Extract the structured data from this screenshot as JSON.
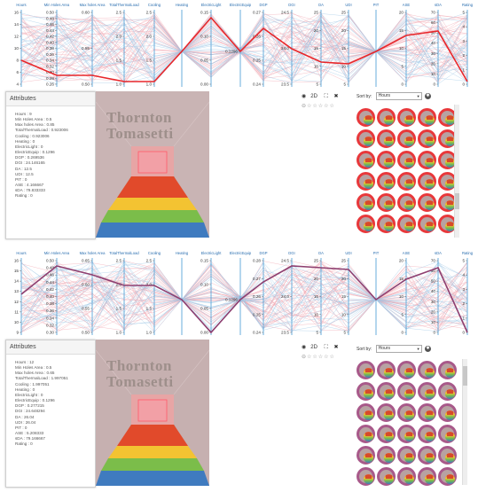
{
  "axes_labels": [
    "Hours",
    "Min Holes Area",
    "Max holes Area",
    "TotalThermalLoad",
    "Cooling",
    "Heating",
    "ElectricLight",
    "ElectricEquip",
    "DGP",
    "DGI",
    "DA",
    "UDI",
    "PIT",
    "ASE",
    "sDA",
    "Rating"
  ],
  "panels": [
    {
      "id": "top",
      "axes": [
        {
          "ticks": [
            "16",
            "14",
            "12",
            "10",
            "8",
            "6",
            "4"
          ]
        },
        {
          "ticks": [
            "0.50",
            "0.48",
            "0.46",
            "0.44",
            "0.42",
            "0.40",
            "0.38",
            "0.36",
            "0.34",
            "0.32",
            "0.30",
            "0.28",
            "0.26"
          ]
        },
        {
          "ticks": [
            "0.60",
            "0.55",
            "0.50"
          ]
        },
        {
          "ticks": [
            "2.5",
            "2.0",
            "1.5",
            "1.0"
          ]
        },
        {
          "ticks": [
            "2.5",
            "2.0",
            "1.5",
            "1.0"
          ]
        },
        {
          "ticks": []
        },
        {
          "ticks": [
            "0.15",
            "0.10",
            "0.05",
            "0.00"
          ]
        },
        {
          "ticks": [
            "0.1296"
          ]
        },
        {
          "ticks": [
            "0.27",
            "0.26",
            "0.25",
            "0.24"
          ]
        },
        {
          "ticks": [
            "24.5",
            "24.0",
            "23.5"
          ]
        },
        {
          "ticks": [
            "25",
            "20",
            "15",
            "10",
            "5"
          ]
        },
        {
          "ticks": [
            "25",
            "20",
            "15",
            "10",
            "5"
          ]
        },
        {
          "ticks": []
        },
        {
          "ticks": [
            "20",
            "15",
            "10",
            "5",
            "0"
          ]
        },
        {
          "ticks": [
            "70",
            "60",
            "50",
            "40",
            "30",
            "20",
            "10",
            "0"
          ]
        },
        {
          "ticks": [
            "5",
            "4",
            "3",
            "2",
            "1",
            "0"
          ]
        }
      ],
      "attributes_title": "Attributes",
      "attributes": [
        "Hours : 9",
        "Min Holes Area : 0.5",
        "Max holes Area : 0.85",
        "TotalThermalLoad : 0.923006",
        "Cooling : 0.923006",
        "Heating : 0",
        "ElectricLight : 0",
        "ElectricEquip : 0.1296",
        "DGP : 0.269536",
        "DGI : 24.146165",
        "DA : 12.5",
        "UDI : 12.5",
        "PIT : 0",
        "ASE : 4.166667",
        "sDA : 79.833333",
        "Rating : 0"
      ],
      "render_logo": [
        "Thornton",
        "Tomasetti"
      ],
      "view_mode": "2D",
      "sort_label": "Sort by:",
      "sort_value": "Hours",
      "thumb_ring_color": "#e8383b"
    },
    {
      "id": "bottom",
      "axes": [
        {
          "ticks": [
            "16",
            "15",
            "14",
            "13",
            "12",
            "11",
            "10",
            "9"
          ]
        },
        {
          "ticks": [
            "0.50",
            "0.48",
            "0.46",
            "0.44",
            "0.42",
            "0.40",
            "0.38",
            "0.36",
            "0.34",
            "0.32",
            "0.30"
          ]
        },
        {
          "ticks": [
            "0.65",
            "0.60",
            "0.55",
            "0.50"
          ]
        },
        {
          "ticks": [
            "2.5",
            "2.0",
            "1.5",
            "1.0"
          ]
        },
        {
          "ticks": [
            "2.5",
            "2.0",
            "1.5",
            "1.0"
          ]
        },
        {
          "ticks": []
        },
        {
          "ticks": [
            "0.15",
            "0.10",
            "0.05",
            "0.00"
          ]
        },
        {
          "ticks": [
            "0.1296"
          ]
        },
        {
          "ticks": [
            "0.28",
            "0.27",
            "0.26",
            "0.25",
            "0.24"
          ]
        },
        {
          "ticks": [
            "24.5",
            "24.0",
            "23.5"
          ]
        },
        {
          "ticks": [
            "25",
            "20",
            "15",
            "10",
            "5"
          ]
        },
        {
          "ticks": [
            "25",
            "20",
            "15",
            "10",
            "5"
          ]
        },
        {
          "ticks": []
        },
        {
          "ticks": [
            "20",
            "15",
            "10",
            "5",
            "0"
          ]
        },
        {
          "ticks": [
            "70",
            "60",
            "50",
            "40",
            "30",
            "20",
            "10",
            "0"
          ]
        },
        {
          "ticks": [
            "5",
            "4",
            "3",
            "2",
            "1",
            "0"
          ]
        }
      ],
      "attributes_title": "Attributes",
      "attributes": [
        "Hours : 12",
        "Min Holes Area : 0.5",
        "Max holes Area : 0.65",
        "TotalThermalLoad : 1.997051",
        "Cooling : 1.997051",
        "Heating : 0",
        "ElectricLight : 0",
        "ElectricEquip : 0.1296",
        "DGP : 0.277215",
        "DGI : 24.648294",
        "DA : 26.04",
        "UDI : 26.04",
        "PIT : 0",
        "ASE : 5.208333",
        "sDA : 79.166667",
        "Rating : 0"
      ],
      "render_logo": [
        "Thornton",
        "Tomasetti"
      ],
      "view_mode": "2D",
      "sort_label": "Sort by:",
      "sort_value": "Hours",
      "thumb_ring_color": "#a8598a"
    }
  ],
  "colors": {
    "highlight_top": "#e8262a",
    "highlight_bottom": "#8e3f70",
    "line_red": "#f0a4ae",
    "line_blue": "#9cc6e6",
    "axis": "#5aa5d8"
  }
}
